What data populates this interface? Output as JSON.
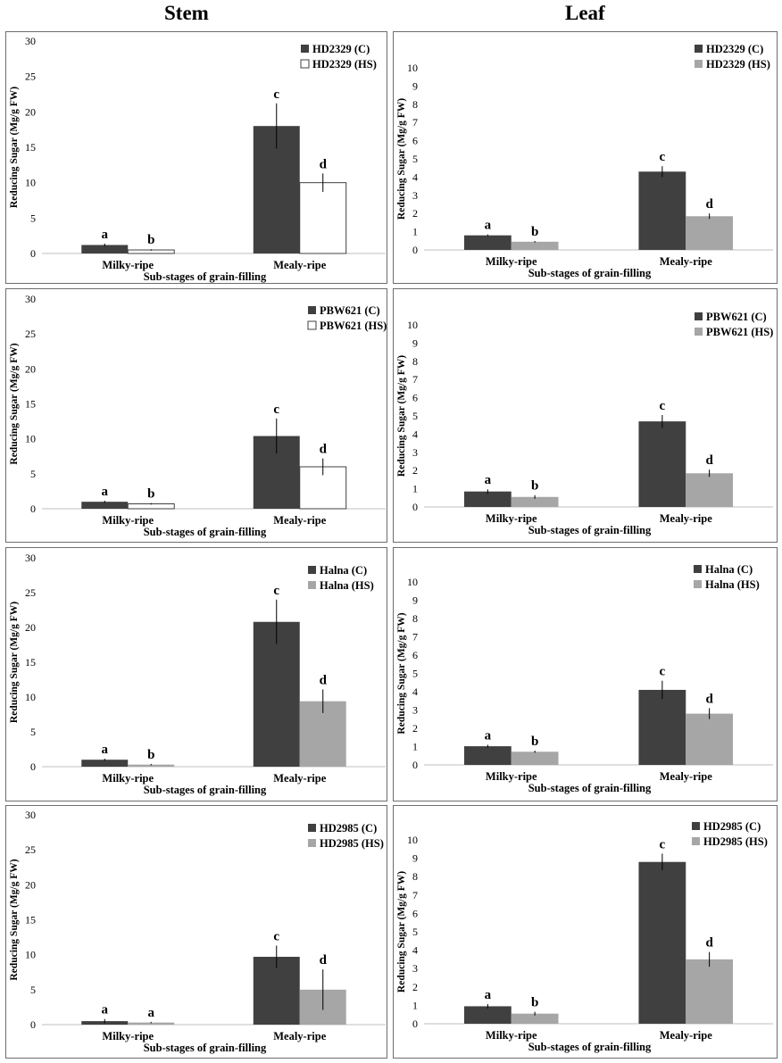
{
  "page": {
    "col_titles": [
      "Stem",
      "Leaf"
    ]
  },
  "colors": {
    "control": "#404040",
    "hs_white": "#ffffff",
    "hs_gray": "#a6a6a6",
    "axis": "#bfbfbf"
  },
  "chart_data": [
    {
      "id": "stem-hd2329",
      "type": "bar",
      "title": "",
      "xlabel": "Sub-stages of grain-filling",
      "ylabel": "Reducing Sugar (Mg/g FW)",
      "ylim": [
        0,
        30
      ],
      "yticks": [
        0,
        5,
        10,
        15,
        20,
        25,
        30
      ],
      "categories": [
        "Milky-ripe",
        "Mealy-ripe"
      ],
      "series": [
        {
          "name": "HD2329 (C)",
          "fill": "control",
          "values": [
            1.2,
            18.0
          ],
          "errors": [
            0.2,
            3.2
          ],
          "letters": [
            "a",
            "c"
          ]
        },
        {
          "name": "HD2329 (HS)",
          "fill": "hs_white",
          "values": [
            0.5,
            10.0
          ],
          "errors": [
            0.1,
            1.3
          ],
          "letters": [
            "b",
            "d"
          ]
        }
      ],
      "legend_position": "top-right"
    },
    {
      "id": "leaf-hd2329",
      "type": "bar",
      "title": "",
      "xlabel": "Sub-stages of grain-filling",
      "ylabel": "Reducing Sugar (Mg/g FW)",
      "ylim": [
        0,
        10
      ],
      "yticks": [
        0,
        1,
        2,
        3,
        4,
        5,
        6,
        7,
        8,
        9,
        10
      ],
      "categories": [
        "Milky-ripe",
        "Mealy-ripe"
      ],
      "series": [
        {
          "name": "HD2329 (C)",
          "fill": "control",
          "values": [
            0.8,
            4.3
          ],
          "errors": [
            0.05,
            0.3
          ],
          "letters": [
            "a",
            "c"
          ]
        },
        {
          "name": "HD2329 (HS)",
          "fill": "hs_gray",
          "values": [
            0.45,
            1.85
          ],
          "errors": [
            0.04,
            0.15
          ],
          "letters": [
            "b",
            "d"
          ]
        }
      ],
      "legend_position": "top-right"
    },
    {
      "id": "stem-pbw621",
      "type": "bar",
      "title": "",
      "xlabel": "Sub-stages of grain-filling",
      "ylabel": "Reducing Sugar (Mg/g FW)",
      "ylim": [
        0,
        30
      ],
      "yticks": [
        0,
        5,
        10,
        15,
        20,
        25,
        30
      ],
      "categories": [
        "Milky-ripe",
        "Mealy-ripe"
      ],
      "series": [
        {
          "name": "PBW621 (C)",
          "fill": "control",
          "values": [
            1.0,
            10.4
          ],
          "errors": [
            0.15,
            2.5
          ],
          "letters": [
            "a",
            "c"
          ]
        },
        {
          "name": "PBW621 (HS)",
          "fill": "hs_white",
          "values": [
            0.7,
            6.0
          ],
          "errors": [
            0.1,
            1.2
          ],
          "letters": [
            "b",
            "d"
          ]
        }
      ],
      "legend_position": "top-right"
    },
    {
      "id": "leaf-pbw621",
      "type": "bar",
      "title": "",
      "xlabel": "Sub-stages of grain-filling",
      "ylabel": "Reducing Sugar (Mg/g FW)",
      "ylim": [
        0,
        10
      ],
      "yticks": [
        0,
        1,
        2,
        3,
        4,
        5,
        6,
        7,
        8,
        9,
        10
      ],
      "categories": [
        "Milky-ripe",
        "Mealy-ripe"
      ],
      "series": [
        {
          "name": "PBW621 (C)",
          "fill": "control",
          "values": [
            0.85,
            4.7
          ],
          "errors": [
            0.12,
            0.35
          ],
          "letters": [
            "a",
            "c"
          ]
        },
        {
          "name": "PBW621 (HS)",
          "fill": "hs_gray",
          "values": [
            0.55,
            1.85
          ],
          "errors": [
            0.1,
            0.2
          ],
          "letters": [
            "b",
            "d"
          ]
        }
      ],
      "legend_position": "top-right"
    },
    {
      "id": "stem-halna",
      "type": "bar",
      "title": "",
      "xlabel": "Sub-stages of grain-filling",
      "ylabel": "Reducing Sugar (Mg/g FW)",
      "ylim": [
        0,
        30
      ],
      "yticks": [
        0,
        5,
        10,
        15,
        20,
        25,
        30
      ],
      "categories": [
        "Milky-ripe",
        "Mealy-ripe"
      ],
      "series": [
        {
          "name": "Halna (C)",
          "fill": "control",
          "values": [
            1.0,
            20.8
          ],
          "errors": [
            0.15,
            3.2
          ],
          "letters": [
            "a",
            "c"
          ]
        },
        {
          "name": "Halna (HS)",
          "fill": "hs_gray",
          "values": [
            0.3,
            9.4
          ],
          "errors": [
            0.1,
            1.7
          ],
          "letters": [
            "b",
            "d"
          ]
        }
      ],
      "legend_position": "top-right"
    },
    {
      "id": "leaf-halna",
      "type": "bar",
      "title": "",
      "xlabel": "Sub-stages of grain-filling",
      "ylabel": "Reducing Sugar (Mg/g FW)",
      "ylim": [
        0,
        10
      ],
      "yticks": [
        0,
        1,
        2,
        3,
        4,
        5,
        6,
        7,
        8,
        9,
        10
      ],
      "categories": [
        "Milky-ripe",
        "Mealy-ripe"
      ],
      "series": [
        {
          "name": "Halna (C)",
          "fill": "control",
          "values": [
            1.02,
            4.1
          ],
          "errors": [
            0.08,
            0.5
          ],
          "letters": [
            "a",
            "c"
          ]
        },
        {
          "name": "Halna (HS)",
          "fill": "hs_gray",
          "values": [
            0.72,
            2.8
          ],
          "errors": [
            0.06,
            0.3
          ],
          "letters": [
            "b",
            "d"
          ]
        }
      ],
      "legend_position": "top-right"
    },
    {
      "id": "stem-hd2985",
      "type": "bar",
      "title": "",
      "xlabel": "Sub-stages of grain-filling",
      "ylabel": "Reducing Sugar (Mg/g FW)",
      "ylim": [
        0,
        30
      ],
      "yticks": [
        0,
        5,
        10,
        15,
        20,
        25,
        30
      ],
      "categories": [
        "Milky-ripe",
        "Mealy-ripe"
      ],
      "series": [
        {
          "name": "HD2985 (C)",
          "fill": "control",
          "values": [
            0.5,
            9.7
          ],
          "errors": [
            0.3,
            1.6
          ],
          "letters": [
            "a",
            "c"
          ]
        },
        {
          "name": "HD2985 (HS)",
          "fill": "hs_gray",
          "values": [
            0.3,
            5.0
          ],
          "errors": [
            0.1,
            2.9
          ],
          "letters": [
            "a",
            "d"
          ]
        }
      ],
      "legend_position": "top-right"
    },
    {
      "id": "leaf-hd2985",
      "type": "bar",
      "title": "",
      "xlabel": "Sub-stages of grain-filling",
      "ylabel": "Reducing Sugar (Mg/g FW)",
      "ylim": [
        0,
        10
      ],
      "yticks": [
        0,
        1,
        2,
        3,
        4,
        5,
        6,
        7,
        8,
        9,
        10
      ],
      "categories": [
        "Milky-ripe",
        "Mealy-ripe"
      ],
      "series": [
        {
          "name": "HD2985 (C)",
          "fill": "control",
          "values": [
            0.95,
            8.8
          ],
          "errors": [
            0.12,
            0.45
          ],
          "letters": [
            "a",
            "c"
          ]
        },
        {
          "name": "HD2985 (HS)",
          "fill": "hs_gray",
          "values": [
            0.55,
            3.5
          ],
          "errors": [
            0.1,
            0.4
          ],
          "letters": [
            "b",
            "d"
          ]
        }
      ],
      "legend_position": "top-right"
    }
  ]
}
